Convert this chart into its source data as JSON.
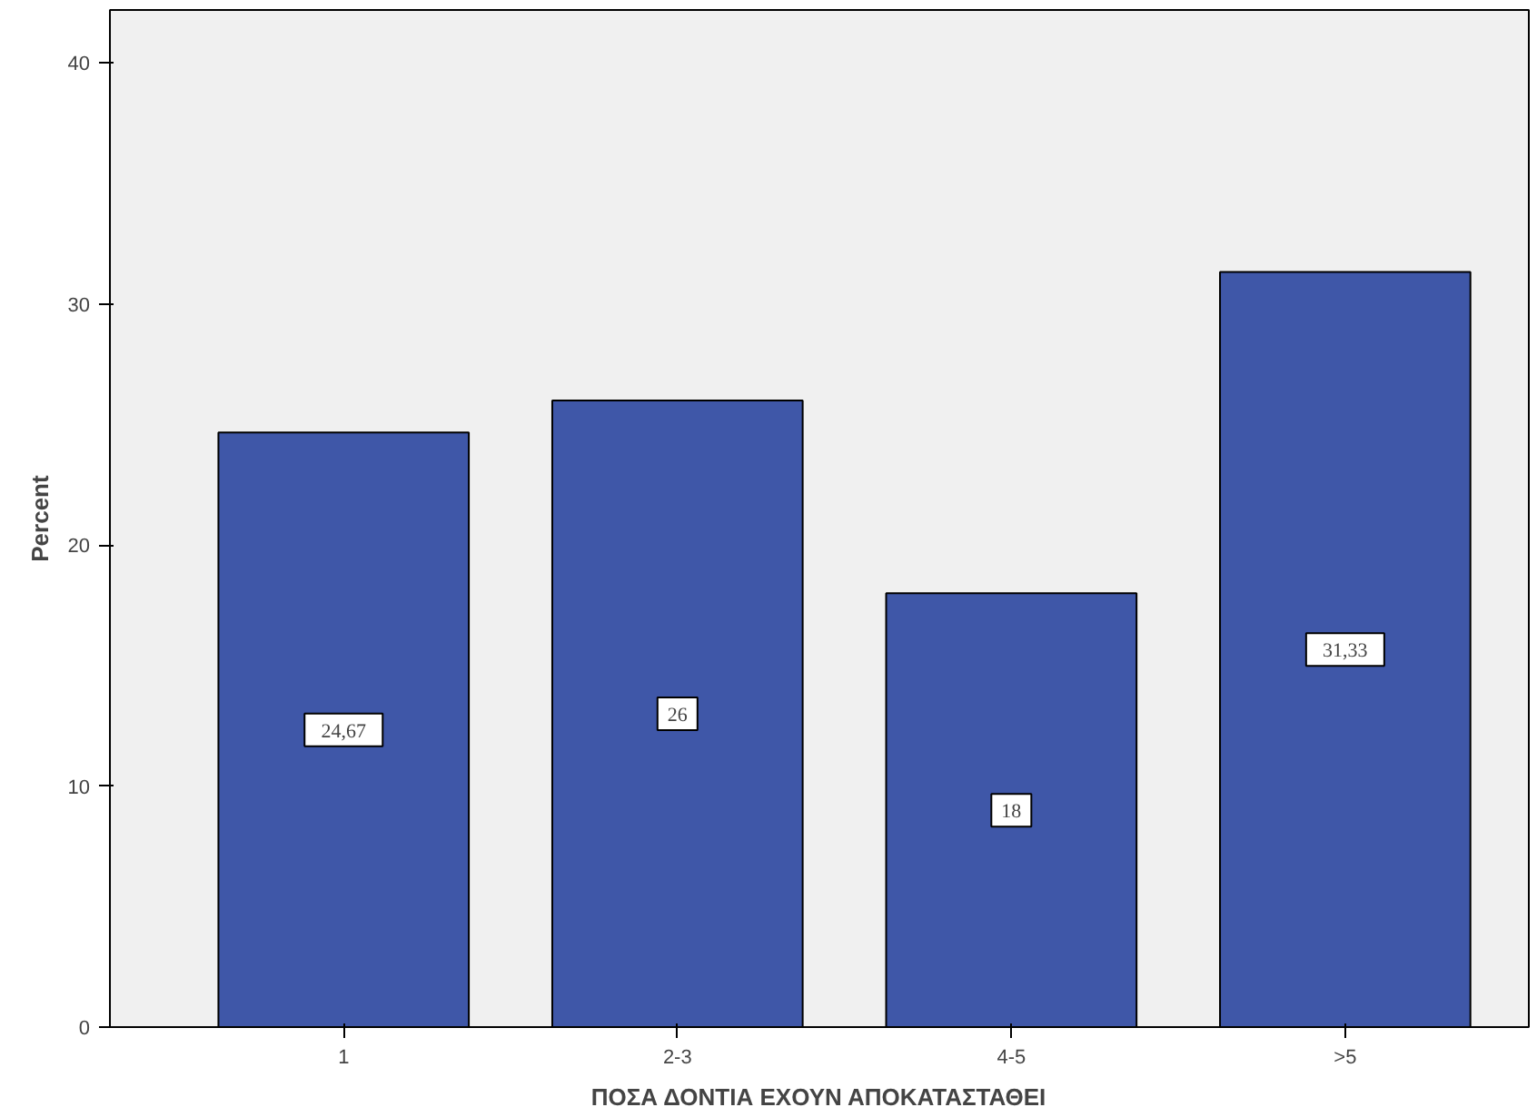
{
  "chart_data": {
    "type": "bar",
    "xlabel": "ΠΟΣΑ ΔΟΝΤΙΑ ΕΧΟΥΝ ΑΠΟΚΑΤΑΣΤΑΘΕΙ",
    "ylabel": "Percent",
    "categories": [
      "1",
      "2-3",
      "4-5",
      ">5"
    ],
    "values": [
      24.67,
      26,
      18,
      31.33
    ],
    "value_labels": [
      "24,67",
      "26",
      "18",
      "31,33"
    ],
    "color": "#3f57a8",
    "ylim": [
      0,
      42.2
    ],
    "yticks": [
      0,
      10,
      20,
      30,
      40
    ],
    "grid": false
  }
}
